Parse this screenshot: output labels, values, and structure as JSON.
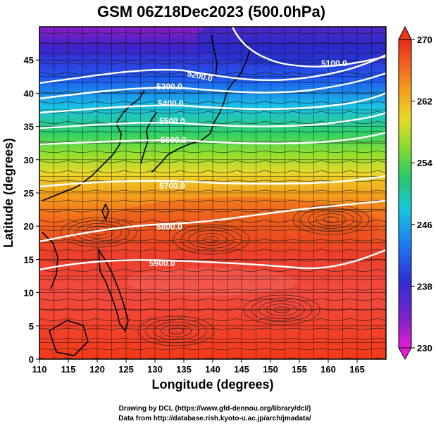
{
  "title": "GSM 06Z18Dec2023 (500.0hPa)",
  "xlabel": "Longitude (degrees)",
  "ylabel": "Latitude  (degrees)",
  "x_ticks": [
    "110",
    "115",
    "120",
    "125",
    "130",
    "135",
    "140",
    "145",
    "150",
    "155",
    "160",
    "165"
  ],
  "y_ticks": [
    "0",
    "5",
    "10",
    "15",
    "20",
    "25",
    "30",
    "35",
    "40",
    "45"
  ],
  "colorbar_ticks": [
    "230",
    "238",
    "246",
    "254",
    "262",
    "270"
  ],
  "contour_labels": [
    "5100.0",
    "5200.0",
    "5300.0",
    "5400.0",
    "5500.0",
    "5600.0",
    "5700.0",
    "5800.0",
    "5900.0"
  ],
  "credits": {
    "line1": "Drawing by DCL (https://www.gfd-dennou.org/library/dcl/)",
    "line2": "Data from http://database.rish.kyoto-u.ac.jp/arch/jmadata/"
  },
  "map": {
    "lon_range": [
      110,
      170
    ],
    "lat_range": [
      0,
      50
    ],
    "colorbar_range": [
      230,
      270
    ],
    "contour_interval": 100,
    "overlays": [
      "temperature-shading",
      "geopotential-height-contours",
      "wind-streamlines",
      "coastlines",
      "lat-lon-grid"
    ]
  }
}
